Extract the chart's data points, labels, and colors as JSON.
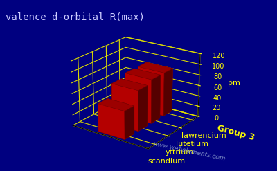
{
  "title": "valence d-orbital R(max)",
  "elements": [
    "scandium",
    "yttrium",
    "lutetium",
    "lawrencium"
  ],
  "values": [
    52,
    76,
    83,
    83
  ],
  "ylabel": "pm",
  "xlabel": "Group 3",
  "ylim": [
    0,
    120
  ],
  "yticks": [
    0,
    20,
    40,
    60,
    80,
    100,
    120
  ],
  "bar_color": "#cc0000",
  "bar_color_dark": "#770000",
  "background_color": "#000080",
  "grid_color": "#dddd00",
  "text_color": "#ffff00",
  "title_color": "#ccccff",
  "watermark": "www.webelements.com",
  "title_fontsize": 10,
  "label_fontsize": 8,
  "tick_fontsize": 7,
  "elev": 22,
  "azim": -55
}
